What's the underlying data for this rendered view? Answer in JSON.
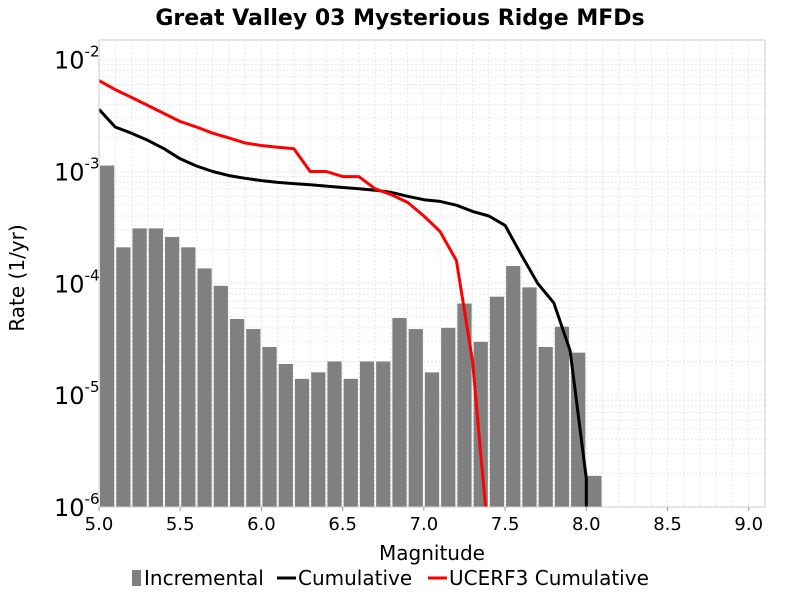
{
  "chart_data": {
    "type": "bar",
    "title": "Great Valley 03 Mysterious Ridge MFDs",
    "xlabel": "Magnitude",
    "ylabel": "Rate (1/yr)",
    "xlim": [
      5.0,
      9.1
    ],
    "ylim": [
      1e-06,
      0.015
    ],
    "y_scale": "log",
    "grid": true,
    "legend_placement": "bottom",
    "x_ticks": [
      "5.0",
      "5.5",
      "6.0",
      "6.5",
      "7.0",
      "7.5",
      "8.0",
      "8.5",
      "9.0"
    ],
    "y_ticks": [
      {
        "value": 0.01,
        "base": "10",
        "exp": "-2"
      },
      {
        "value": 0.001,
        "base": "10",
        "exp": "-3"
      },
      {
        "value": 0.0001,
        "base": "10",
        "exp": "-4"
      },
      {
        "value": 1e-05,
        "base": "10",
        "exp": "-5"
      },
      {
        "value": 1e-06,
        "base": "10",
        "exp": "-6"
      }
    ],
    "series": [
      {
        "name": "Incremental",
        "kind": "bar",
        "color": "#808080",
        "x": [
          5.05,
          5.15,
          5.25,
          5.35,
          5.45,
          5.55,
          5.65,
          5.75,
          5.85,
          5.95,
          6.05,
          6.15,
          6.25,
          6.35,
          6.45,
          6.55,
          6.65,
          6.75,
          6.85,
          6.95,
          7.05,
          7.15,
          7.25,
          7.35,
          7.45,
          7.55,
          7.65,
          7.75,
          7.85,
          7.95,
          8.05
        ],
        "values": [
          0.00113,
          0.00021,
          0.00031,
          0.00031,
          0.00026,
          0.00021,
          0.000136,
          9.5e-05,
          4.8e-05,
          3.9e-05,
          2.7e-05,
          1.9e-05,
          1.4e-05,
          1.6e-05,
          2e-05,
          1.4e-05,
          2e-05,
          2e-05,
          4.9e-05,
          3.9e-05,
          1.6e-05,
          4e-05,
          6.6e-05,
          3e-05,
          7.6e-05,
          0.000143,
          9.2e-05,
          2.7e-05,
          4.1e-05,
          2.4e-05,
          1.9e-06
        ]
      },
      {
        "name": "Cumulative",
        "kind": "line",
        "color": "#000000",
        "x": [
          5.0,
          5.1,
          5.2,
          5.3,
          5.4,
          5.5,
          5.6,
          5.7,
          5.8,
          5.9,
          6.0,
          6.1,
          6.2,
          6.3,
          6.4,
          6.5,
          6.6,
          6.7,
          6.8,
          6.9,
          7.0,
          7.1,
          7.2,
          7.3,
          7.4,
          7.5,
          7.6,
          7.7,
          7.8,
          7.9,
          8.0,
          8.0
        ],
        "values": [
          0.0036,
          0.0025,
          0.0022,
          0.0019,
          0.0016,
          0.0013,
          0.00112,
          0.001,
          0.00092,
          0.00087,
          0.00083,
          0.0008,
          0.00078,
          0.00076,
          0.00074,
          0.00072,
          0.0007,
          0.00068,
          0.00065,
          0.0006,
          0.00056,
          0.00054,
          0.0005,
          0.00044,
          0.0004,
          0.00033,
          0.00018,
          0.0001,
          6.7e-05,
          2.5e-05,
          1.8e-06,
          1e-06
        ]
      },
      {
        "name": "UCERF3 Cumulative",
        "kind": "line",
        "color": "#ff0000",
        "x": [
          5.0,
          5.1,
          5.2,
          5.3,
          5.4,
          5.5,
          5.6,
          5.7,
          5.8,
          5.9,
          6.0,
          6.1,
          6.2,
          6.3,
          6.4,
          6.45,
          6.5,
          6.6,
          6.7,
          6.8,
          6.9,
          7.0,
          7.1,
          7.2,
          7.3,
          7.35,
          7.38
        ],
        "values": [
          0.0065,
          0.0054,
          0.0046,
          0.0039,
          0.0033,
          0.0028,
          0.0025,
          0.0022,
          0.002,
          0.0018,
          0.00171,
          0.00165,
          0.0016,
          0.001,
          0.001,
          0.00095,
          0.0009,
          0.0009,
          0.0007,
          0.00062,
          0.00053,
          0.0004,
          0.00029,
          0.00016,
          2e-05,
          3e-06,
          1e-06
        ]
      }
    ]
  }
}
